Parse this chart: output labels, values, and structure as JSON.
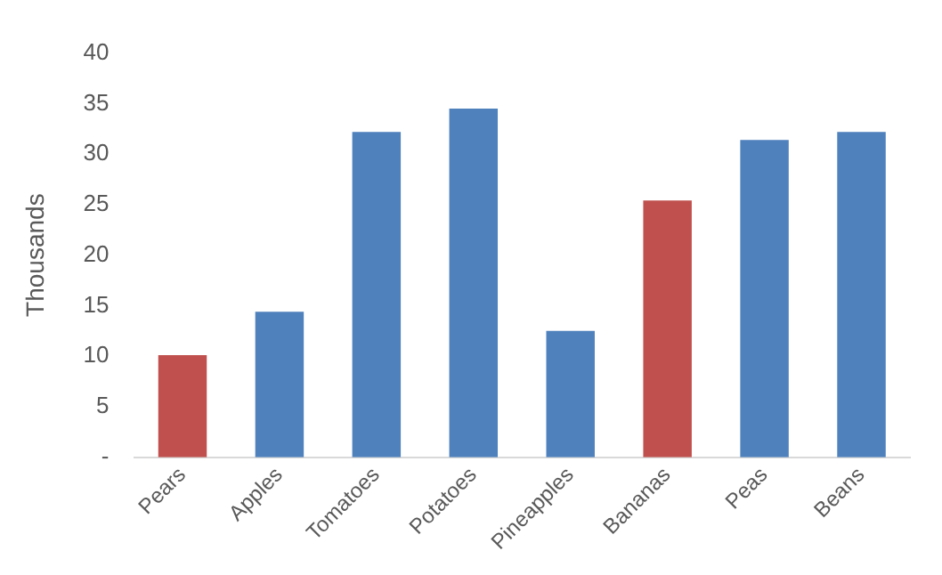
{
  "chart_data": {
    "type": "bar",
    "ylabel": "Thousands",
    "categories": [
      "Pears",
      "Apples",
      "Tomatoes",
      "Potatoes",
      "Pineapples",
      "Bananas",
      "Peas",
      "Beans"
    ],
    "values": [
      10.1,
      14.4,
      32.2,
      34.5,
      12.5,
      25.4,
      31.4,
      32.2
    ],
    "colors": [
      "#c0504d",
      "#4f81bd",
      "#4f81bd",
      "#4f81bd",
      "#4f81bd",
      "#c0504d",
      "#4f81bd",
      "#4f81bd"
    ],
    "ylim": [
      0,
      40
    ],
    "yticks": [
      {
        "value": 0,
        "label": "-"
      },
      5,
      10,
      15,
      20,
      25,
      30,
      35,
      40
    ],
    "grid": false,
    "legend": false
  }
}
